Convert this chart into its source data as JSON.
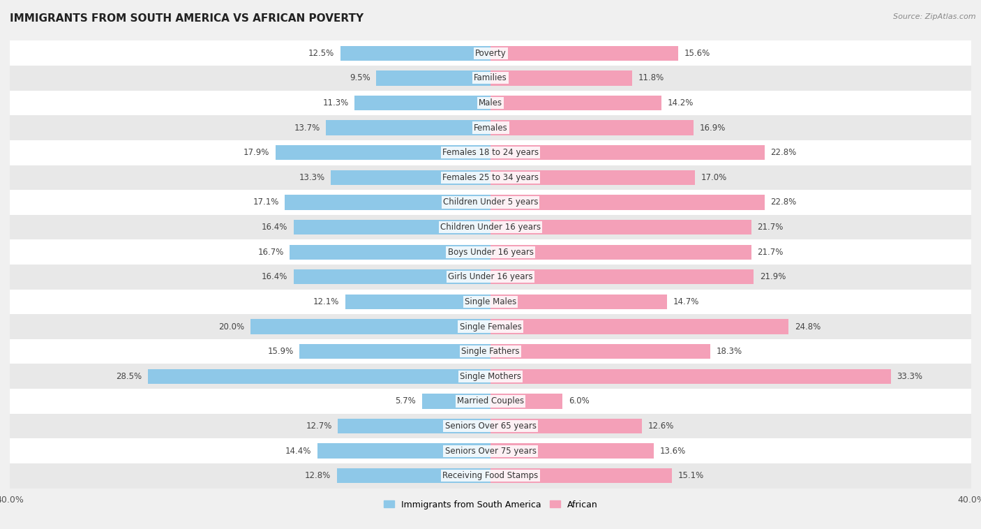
{
  "title": "IMMIGRANTS FROM SOUTH AMERICA VS AFRICAN POVERTY",
  "source": "Source: ZipAtlas.com",
  "categories": [
    "Poverty",
    "Families",
    "Males",
    "Females",
    "Females 18 to 24 years",
    "Females 25 to 34 years",
    "Children Under 5 years",
    "Children Under 16 years",
    "Boys Under 16 years",
    "Girls Under 16 years",
    "Single Males",
    "Single Females",
    "Single Fathers",
    "Single Mothers",
    "Married Couples",
    "Seniors Over 65 years",
    "Seniors Over 75 years",
    "Receiving Food Stamps"
  ],
  "south_america": [
    12.5,
    9.5,
    11.3,
    13.7,
    17.9,
    13.3,
    17.1,
    16.4,
    16.7,
    16.4,
    12.1,
    20.0,
    15.9,
    28.5,
    5.7,
    12.7,
    14.4,
    12.8
  ],
  "african": [
    15.6,
    11.8,
    14.2,
    16.9,
    22.8,
    17.0,
    22.8,
    21.7,
    21.7,
    21.9,
    14.7,
    24.8,
    18.3,
    33.3,
    6.0,
    12.6,
    13.6,
    15.1
  ],
  "color_sa": "#8ec8e8",
  "color_af": "#f4a0b8",
  "axis_max": 40.0,
  "background_color": "#f0f0f0",
  "bar_bg_even": "#ffffff",
  "bar_bg_odd": "#e8e8e8",
  "bar_height": 0.6,
  "label_fontsize": 8.5,
  "legend_label_sa": "Immigrants from South America",
  "legend_label_af": "African",
  "title_fontsize": 11,
  "source_fontsize": 8
}
